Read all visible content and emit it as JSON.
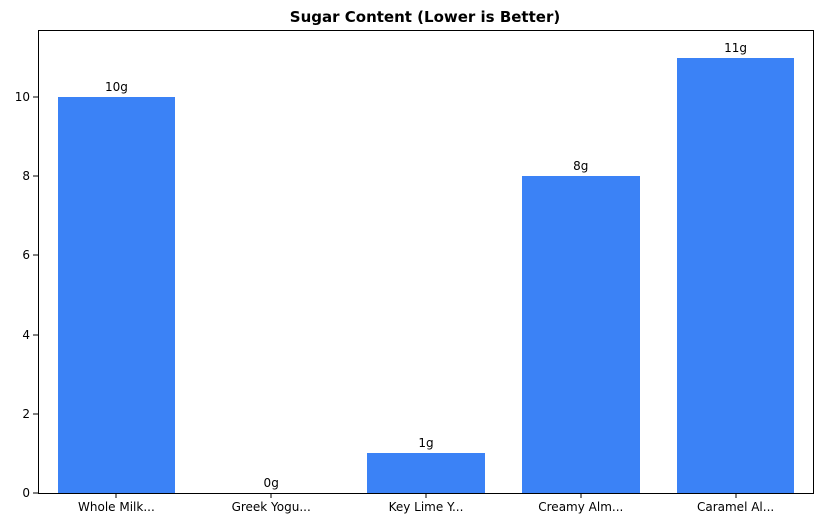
{
  "chart_data": {
    "type": "bar",
    "title": "Sugar Content (Lower is Better)",
    "categories": [
      "Whole Milk...",
      "Greek Yogu...",
      "Key Lime Y...",
      "Creamy Alm...",
      "Caramel Al..."
    ],
    "values": [
      10,
      0,
      1,
      8,
      11
    ],
    "bar_labels": [
      "10g",
      "0g",
      "1g",
      "8g",
      "11g"
    ],
    "xlabel": "",
    "ylabel": "",
    "ylim": [
      0,
      11.67
    ],
    "yticks": [
      0,
      2,
      4,
      6,
      8,
      10
    ],
    "bar_color": "#3b82f6",
    "grid": false,
    "legend": "none",
    "background": "#ffffff"
  }
}
